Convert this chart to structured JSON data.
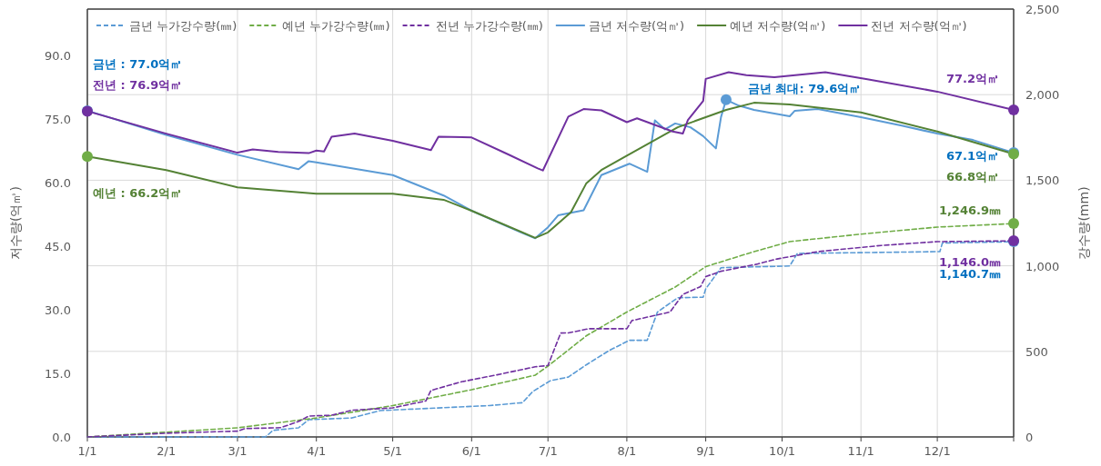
{
  "chart_data": {
    "type": "line",
    "ylabel": "저수량(억㎥)",
    "y2label": "강수량(mm)",
    "xlim": [
      "--01-01",
      "--12-31"
    ],
    "xticks": [
      {
        "value": "--01-01",
        "label": "1/1"
      },
      {
        "value": "--02-01",
        "label": "2/1"
      },
      {
        "value": "--03-01",
        "label": "3/1"
      },
      {
        "value": "--04-01",
        "label": "4/1"
      },
      {
        "value": "--05-01",
        "label": "5/1"
      },
      {
        "value": "--06-01",
        "label": "6/1"
      },
      {
        "value": "--07-01",
        "label": "7/1"
      },
      {
        "value": "--08-01",
        "label": "8/1"
      },
      {
        "value": "--09-01",
        "label": "9/1"
      },
      {
        "value": "--10-01",
        "label": "10/1"
      },
      {
        "value": "--11-01",
        "label": "11/1"
      },
      {
        "value": "--12-01",
        "label": "12/1"
      },
      {
        "value": "--12-31",
        "label": null
      }
    ],
    "ylim": [
      0,
      101
    ],
    "yticks": [
      {
        "value": 0,
        "label": "0.0"
      },
      {
        "value": 15,
        "label": "15.0"
      },
      {
        "value": 30,
        "label": "30.0"
      },
      {
        "value": 45,
        "label": "45.0"
      },
      {
        "value": 60,
        "label": "60.0"
      },
      {
        "value": 75,
        "label": "75.0"
      },
      {
        "value": 90,
        "label": "90.0"
      }
    ],
    "y2lim": [
      0,
      2500
    ],
    "y2ticks": [
      0,
      500,
      {
        "value": 1000,
        "label": "1,000"
      },
      {
        "value": 1500,
        "label": "1,500"
      },
      {
        "value": 2000,
        "label": "2,000"
      },
      {
        "value": 2500,
        "label": "2,500"
      }
    ],
    "grid": true,
    "legend": "top",
    "series": [
      {
        "name": "금년 누가강수량(㎜)",
        "color": "#5b9bd5",
        "axis": "y2",
        "line_style": "dashed",
        "x": [
          "--01-01",
          "--03-12",
          "--03-15",
          "--03-25",
          "--03-29",
          "--04-15",
          "--04-26",
          "--06-08",
          "--06-21",
          "--06-25",
          "--07-02",
          "--07-09",
          "--07-16",
          "--07-25",
          "--08-02",
          "--08-09",
          "--08-13",
          "--08-21",
          "--08-31",
          "--09-01",
          "--09-07",
          "--10-04",
          "--10-07",
          "--12-02",
          "--12-03",
          "--12-31"
        ],
        "values": [
          0,
          0,
          39,
          53,
          101,
          111,
          154,
          183,
          200,
          265,
          329,
          350,
          421,
          504,
          565,
          565,
          730,
          813,
          817,
          865,
          989,
          999,
          1072,
          1083,
          1133,
          1140.7
        ]
      },
      {
        "name": "예년 누가강수량(㎜)",
        "color": "#70ad47",
        "axis": "y2",
        "line_style": "dashed",
        "x": [
          "--01-01",
          "--03-01",
          "--04-01",
          "--05-01",
          "--06-01",
          "--06-26",
          "--07-01",
          "--07-16",
          "--08-01",
          "--08-20",
          "--09-01",
          "--09-20",
          "--10-04",
          "--11-01",
          "--12-01",
          "--12-31"
        ],
        "values": [
          0,
          53,
          111,
          183,
          276,
          361,
          414,
          590,
          730,
          876,
          995,
          1083,
          1141,
          1185,
          1226,
          1246.9
        ]
      },
      {
        "name": "전년 누가강수량(㎜)",
        "color": "#7030a0",
        "axis": "y2",
        "line_style": "dashed",
        "x": [
          "--01-01",
          "--02-01",
          "--03-01",
          "--03-04",
          "--03-18",
          "--03-25",
          "--03-29",
          "--04-07",
          "--04-15",
          "--05-01",
          "--05-14",
          "--05-16",
          "--05-28",
          "--06-11",
          "--06-26",
          "--07-01",
          "--07-06",
          "--07-09",
          "--07-17",
          "--08-01",
          "--08-03",
          "--08-18",
          "--08-23",
          "--08-30",
          "--09-01",
          "--09-07",
          "--09-21",
          "--09-29",
          "--10-15",
          "--11-09",
          "--12-01",
          "--12-31"
        ],
        "values": [
          0,
          22,
          34,
          49,
          54,
          90,
          122,
          127,
          156,
          170,
          210,
          272,
          322,
          363,
          410,
          417,
          607,
          608,
          632,
          632,
          680,
          730,
          833,
          879,
          937,
          968,
          1009,
          1040,
          1083,
          1119,
          1141,
          1146.0
        ]
      },
      {
        "name": "금년 저수량(억㎥)",
        "color": "#5b9bd5",
        "line_style": "solid",
        "x": [
          "--01-01",
          "--02-01",
          "--03-01",
          "--03-25",
          "--03-29",
          "--04-01",
          "--05-01",
          "--05-21",
          "--06-01",
          "--06-20",
          "--06-26",
          "--07-01",
          "--07-05",
          "--07-15",
          "--07-22",
          "--08-02",
          "--08-09",
          "--08-12",
          "--08-16",
          "--08-20",
          "--08-26",
          "--08-31",
          "--09-05",
          "--09-07",
          "--09-09",
          "--09-14",
          "--09-20",
          "--10-04",
          "--10-06",
          "--10-15",
          "--11-01",
          "--11-17",
          "--12-01",
          "--12-15",
          "--12-31"
        ],
        "values": [
          77.0,
          71.3,
          66.6,
          63.2,
          65.1,
          64.8,
          61.8,
          57.0,
          53.4,
          48.4,
          46.9,
          49.5,
          52.3,
          53.5,
          61.8,
          64.5,
          62.6,
          74.7,
          72.6,
          74.0,
          73.1,
          71.0,
          68.1,
          75.5,
          79.6,
          78.2,
          77.2,
          75.7,
          77.0,
          77.4,
          75.5,
          73.5,
          71.6,
          70.1,
          67.1
        ]
      },
      {
        "name": "예년 저수량(억㎥)",
        "color": "#548235",
        "line_style": "solid",
        "x": [
          "--01-01",
          "--02-01",
          "--03-01",
          "--04-01",
          "--05-01",
          "--05-21",
          "--06-01",
          "--06-26",
          "--07-01",
          "--07-10",
          "--07-16",
          "--07-22",
          "--08-01",
          "--08-21",
          "--09-09",
          "--09-20",
          "--10-04",
          "--11-01",
          "--12-01",
          "--12-31"
        ],
        "values": [
          66.2,
          63.0,
          58.9,
          57.4,
          57.4,
          56.0,
          53.4,
          47.0,
          48.3,
          53.0,
          59.8,
          63.0,
          66.4,
          73.1,
          77.2,
          78.9,
          78.5,
          76.6,
          72.1,
          66.8
        ]
      },
      {
        "name": "전년 저수량(억㎥)",
        "color": "#7030a0",
        "line_style": "solid",
        "x": [
          "--01-01",
          "--02-01",
          "--03-01",
          "--03-07",
          "--03-17",
          "--03-29",
          "--04-01",
          "--04-04",
          "--04-07",
          "--04-16",
          "--05-01",
          "--05-16",
          "--05-19",
          "--06-01",
          "--06-15",
          "--06-27",
          "--06-29",
          "--07-09",
          "--07-15",
          "--07-22",
          "--08-01",
          "--08-05",
          "--08-19",
          "--08-23",
          "--08-25",
          "--08-31",
          "--09-01",
          "--09-10",
          "--09-17",
          "--09-28",
          "--10-18",
          "--11-03",
          "--12-01",
          "--12-31"
        ],
        "values": [
          76.9,
          71.6,
          67.1,
          67.9,
          67.3,
          67.0,
          67.6,
          67.4,
          70.9,
          71.6,
          69.9,
          67.7,
          70.9,
          70.7,
          66.8,
          63.4,
          62.9,
          75.6,
          77.4,
          77.1,
          74.3,
          75.2,
          72.1,
          71.6,
          74.8,
          79.3,
          84.5,
          86.1,
          85.4,
          84.9,
          86.1,
          84.5,
          81.5,
          77.2
        ]
      }
    ],
    "annotations": [
      "금년 : 77.0억㎥",
      "전년 : 76.9억㎥",
      "예년 : 66.2억㎥",
      "금년 최대: 79.6억㎥",
      "77.2억㎥",
      "67.1억㎥",
      "66.8억㎥",
      "1,246.9㎜",
      "1,140.7㎜",
      "1,146.0㎜"
    ]
  }
}
